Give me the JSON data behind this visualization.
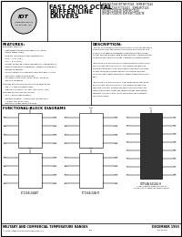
{
  "white": "#ffffff",
  "black": "#000000",
  "light_gray": "#cccccc",
  "dark_gray": "#555555",
  "header_title1": "FAST CMOS OCTAL",
  "header_title2": "BUFFER/LINE",
  "header_title3": "DRIVERS",
  "part_nums": [
    "IDT54FCT244 IDT74FCT244 - IDM54FCT244",
    "IDT54FCT244 FCT24411 - IDM54FCT243",
    "IDT54FCT244CTE IDM74FCT244",
    "IDT54FCT244CTE IDM 54FCT244CTE"
  ],
  "features_title": "FEATURES:",
  "features_lines": [
    "Equivalent features:",
    "  - Low quiescent/output leakage of uA (max.)",
    "  - CMOS power levels",
    "  - True TTL input and output compatibility",
    "    VOH = 3.3V (typ.)",
    "    VOL = 0.1V (typ.)",
    "  - Speeds to exceed ACBUS standard TTL specifications",
    "  - Product available in Radiation 1 tested and Radiation-",
    "    Enhanced versions",
    "  - Military products compliant to MIL-STD-883, Class B",
    "    and CECC listed (dual marked)",
    "  - Available in DIP, SOIC, SSOP, QSOP, TQFPACK",
    "    and LCC packages",
    "Features for FCT244/FCT244A/FCT244B/FCT244T:",
    "  - Std. A, C and D speed grades",
    "  - High-drive outputs: 1-32mA (typ. 64mA typ.)",
    "Features for FCT244H/FCT244HT:",
    "  - NCI, A and B speed grades",
    "  - Resistor outputs: ~75ohm (typ. 50ohm typ.)",
    "    (~64mA typ. 50mA typ.)",
    "  - Reduced system switching noise"
  ],
  "desc_title": "DESCRIPTION:",
  "desc_lines": [
    "The FCT octal buffer/line drivers are built using our advanced",
    "dual-metal CMOS technology. The FCT54-00 FCT54-01 and",
    "FCT54-T1 T0 feature packages) three-stage octal tri-state",
    "output address drivers, data drivers and bus interconnection",
    "to applications which provides intermediate board-density.",
    "",
    "The FCT244-41 and FCT244-T1 have balanced output drive",
    "with current limiting resistors. This offers low-resource,",
    "minimal undershoot and controlled output for three-state",
    "output needs for external series terminating resistors.",
    "FCT244-T and I parts are plug-in replacements for FCT244",
    "parts.",
    "",
    "The FCT244-41 and FCT244-T have balanced output drive",
    "with current limiting resistors. This offers low-resource",
    "resource, minimal undershoot and controlled output for",
    "three-state output needs for external series terminating",
    "resistors. FCT244 T and I parts are plug in replacements",
    "for FCT244 parts."
  ],
  "func_title": "FUNCTIONAL BLOCK DIAGRAMS",
  "diag1_label": "FCT244/244AT",
  "diag2_label": "FCT244/244HT",
  "diag3_label": "IDT54A 54/244 H",
  "diag3_note": "* Logic diagram shown for FCT244\n  FCT244 (244-T some non tristate) option",
  "diag1_inputs_a": [
    "1OE1",
    "1A1",
    "1A2",
    "1A3",
    "1A4"
  ],
  "diag1_inputs_b": [
    "2OE1",
    "2A1",
    "2A2",
    "2A3",
    "2A4"
  ],
  "diag1_outputs_a": [
    "1B1",
    "1B2",
    "1B3",
    "1B4"
  ],
  "diag1_outputs_b": [
    "2B1",
    "2B2",
    "2B3",
    "2B4"
  ],
  "footer_left": "MILITARY AND COMMERCIAL TEMPERATURE RANGES",
  "footer_right": "DECEMBER 1993",
  "footer_copy": "1993 Integrated Device Technology, Inc.",
  "footer_doc": "001-00010",
  "page_num": "001"
}
